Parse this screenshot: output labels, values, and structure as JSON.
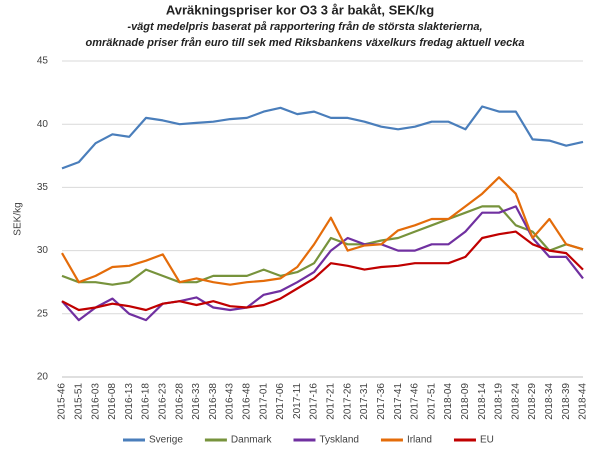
{
  "chart_data": {
    "type": "line",
    "title": "Avräkningspriser kor O3 3 år bakåt, SEK/kg",
    "subtitle": [
      "-vägt medelpris baserat på rapportering från de största slakterierna,",
      "omräknade priser från euro till sek med Riksbankens växelkurs fredag aktuell vecka"
    ],
    "y_label": "SEK/kg",
    "categories": [
      "2015-46",
      "2015-51",
      "2016-03",
      "2016-08",
      "2016-13",
      "2016-18",
      "2016-23",
      "2016-28",
      "2016-33",
      "2016-38",
      "2016-43",
      "2016-48",
      "2017-01",
      "2017-06",
      "2017-11",
      "2017-16",
      "2017-21",
      "2017-26",
      "2017-31",
      "2017-36",
      "2017-41",
      "2017-46",
      "2017-51",
      "2018-04",
      "2018-09",
      "2018-14",
      "2018-19",
      "2018-24",
      "2018-29",
      "2018-34",
      "2018-39",
      "2018-44"
    ],
    "ylim": [
      20,
      45
    ],
    "yticks": [
      20,
      25,
      30,
      35,
      40,
      45
    ],
    "grid": true,
    "legend": "bottom",
    "series": [
      {
        "name": "Sverige",
        "color": "#4a7ebb",
        "values": [
          36.5,
          37,
          38.5,
          39.2,
          39,
          40.5,
          40.3,
          40,
          40.1,
          40.2,
          40.4,
          40.5,
          41,
          41.3,
          40.8,
          41,
          40.5,
          40.5,
          40.2,
          39.8,
          39.6,
          39.8,
          40.2,
          40.2,
          39.6,
          41.4,
          41,
          41,
          38.8,
          38.7,
          38.3,
          38.6
        ]
      },
      {
        "name": "Danmark",
        "color": "#77933c",
        "values": [
          28,
          27.5,
          27.5,
          27.3,
          27.5,
          28.5,
          28,
          27.5,
          27.5,
          28,
          28,
          28,
          28.5,
          28,
          28.3,
          29,
          31,
          30.5,
          30.5,
          30.8,
          31,
          31.5,
          32,
          32.5,
          33,
          33.5,
          33.5,
          32,
          31.5,
          30,
          30.5,
          30.1
        ]
      },
      {
        "name": "Tyskland",
        "color": "#7030a0",
        "values": [
          26,
          24.5,
          25.5,
          26.2,
          25,
          24.5,
          25.8,
          26,
          26.3,
          25.5,
          25.3,
          25.5,
          26.5,
          26.8,
          27.5,
          28.3,
          30,
          31,
          30.5,
          30.5,
          30,
          30,
          30.5,
          30.5,
          31.5,
          33,
          33,
          33.5,
          31,
          29.5,
          29.5,
          27.8
        ]
      },
      {
        "name": "Irland",
        "color": "#e46c0a",
        "values": [
          29.8,
          27.5,
          28,
          28.7,
          28.8,
          29.2,
          29.7,
          27.5,
          27.8,
          27.5,
          27.3,
          27.5,
          27.6,
          27.8,
          28.7,
          30.5,
          32.6,
          30,
          30.4,
          30.5,
          31.6,
          32,
          32.5,
          32.5,
          33.5,
          34.5,
          35.8,
          34.5,
          31,
          32.5,
          30.5,
          30.1
        ]
      },
      {
        "name": "EU",
        "color": "#c00000",
        "values": [
          26,
          25.3,
          25.5,
          25.8,
          25.6,
          25.3,
          25.8,
          26,
          25.7,
          26,
          25.6,
          25.5,
          25.7,
          26.2,
          27,
          27.8,
          29,
          28.8,
          28.5,
          28.7,
          28.8,
          29,
          29,
          29,
          29.5,
          31,
          31.3,
          31.5,
          30.5,
          30,
          29.8,
          28.5
        ]
      }
    ]
  }
}
